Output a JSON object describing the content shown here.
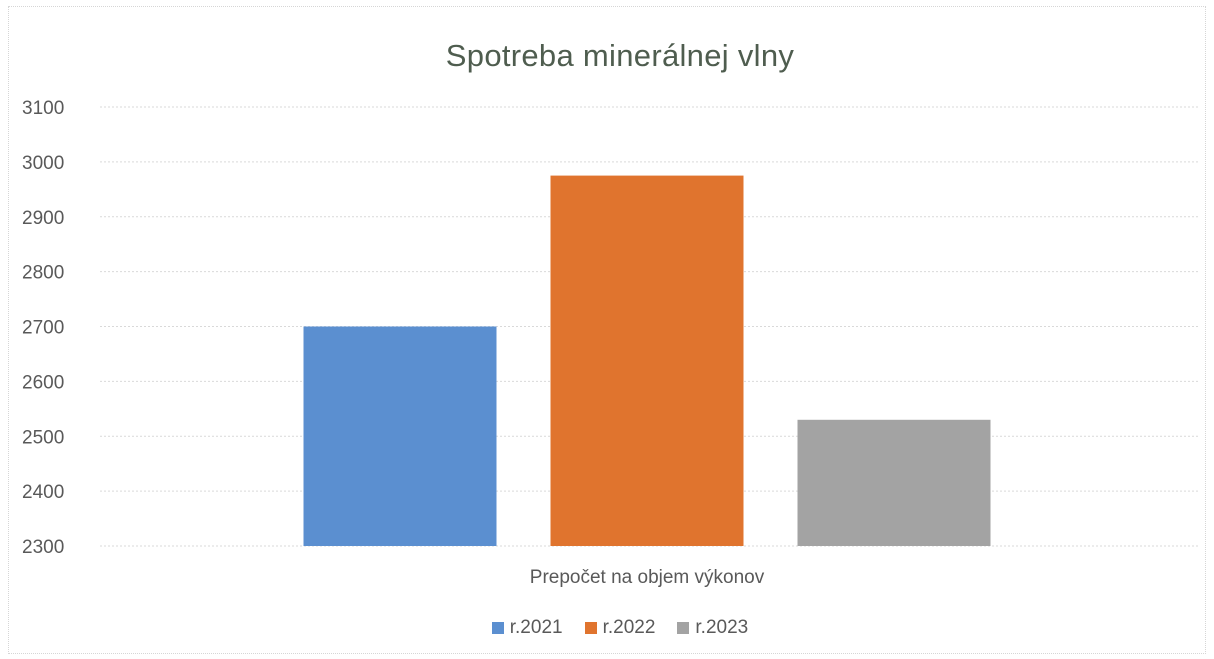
{
  "chart_data": {
    "type": "bar",
    "title": "Spotreba minerálnej vlny",
    "categories": [
      "Prepočet na objem výkonov"
    ],
    "series": [
      {
        "name": "r.2021",
        "values": [
          2700
        ],
        "color": "#5b8fd0"
      },
      {
        "name": "r.2022",
        "values": [
          2975
        ],
        "color": "#e0742e"
      },
      {
        "name": "r.2023",
        "values": [
          2530
        ],
        "color": "#a3a3a3"
      }
    ],
    "ylim": [
      2300,
      3100
    ],
    "yticks": [
      2300,
      2400,
      2500,
      2600,
      2700,
      2800,
      2900,
      3000,
      3100
    ],
    "grid": true,
    "legend_position": "bottom"
  }
}
